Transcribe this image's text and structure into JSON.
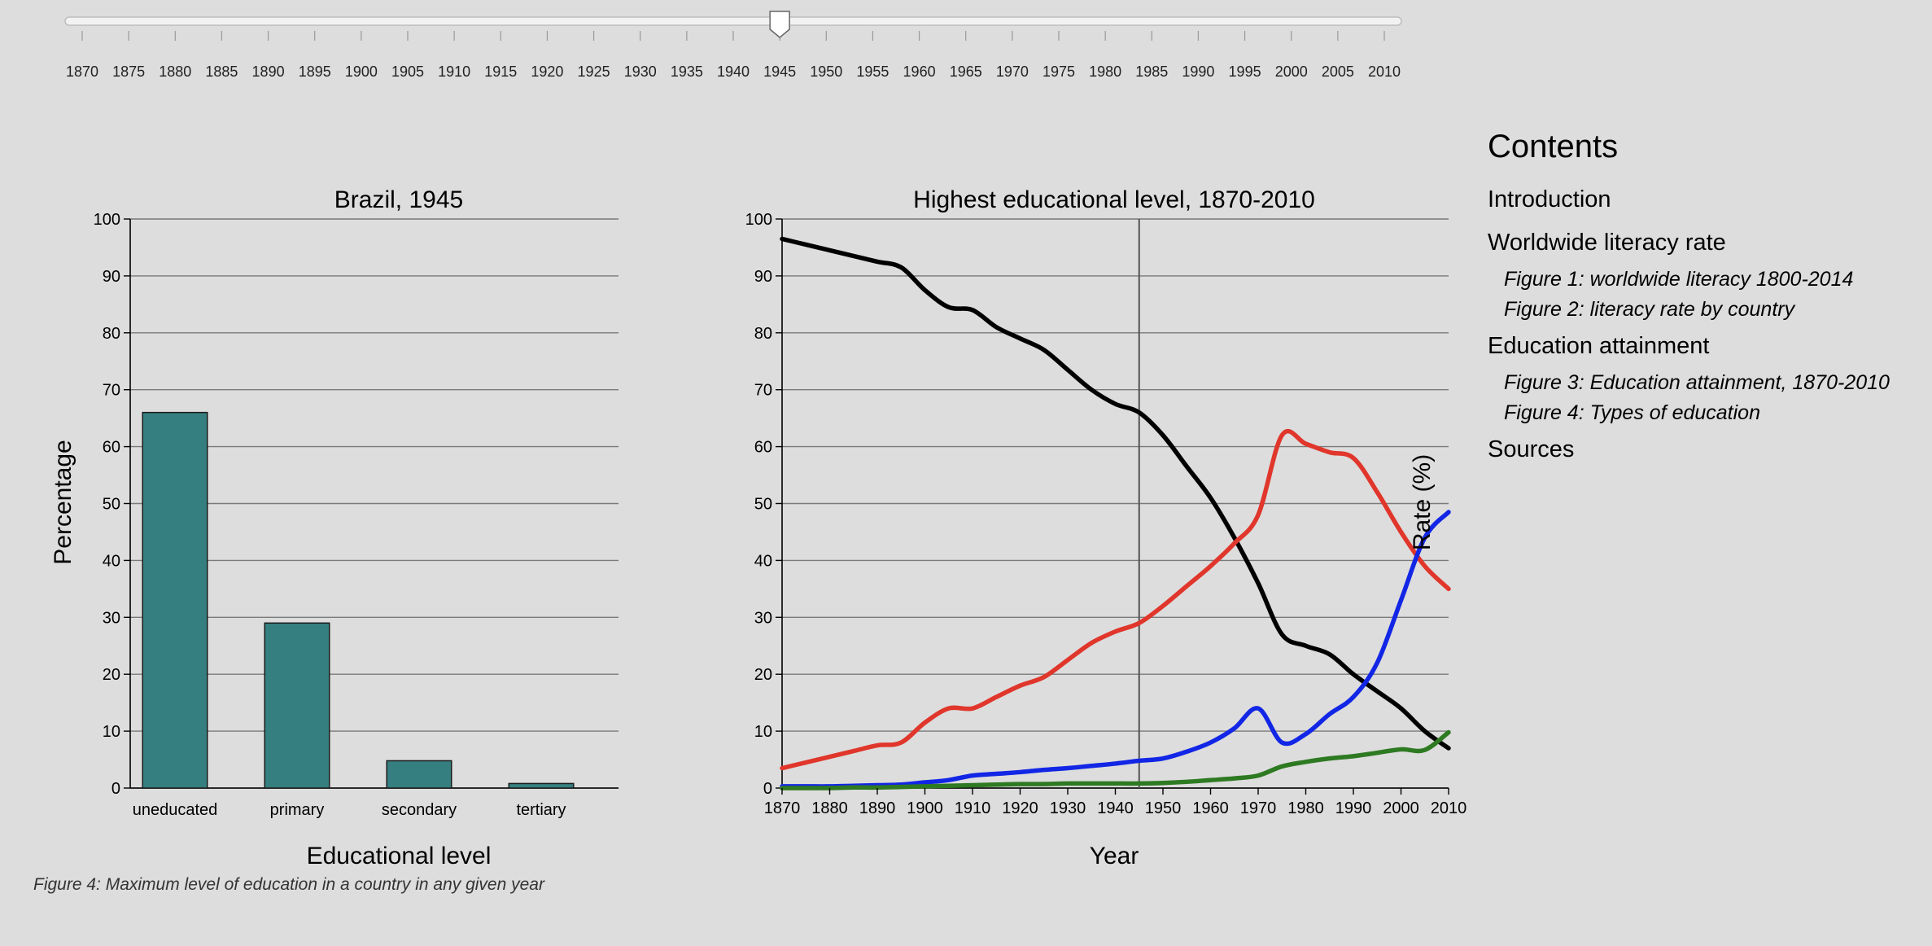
{
  "slider": {
    "min_year": 1870,
    "max_year": 2010,
    "step": 5,
    "selected_year": 1945,
    "tick_labels": [
      "1870",
      "1875",
      "1880",
      "1885",
      "1890",
      "1895",
      "1900",
      "1905",
      "1910",
      "1915",
      "1920",
      "1925",
      "1930",
      "1935",
      "1940",
      "1945",
      "1950",
      "1955",
      "1960",
      "1965",
      "1970",
      "1975",
      "1980",
      "1985",
      "1990",
      "1995",
      "2000",
      "2005",
      "2010"
    ]
  },
  "caption": "Figure 4: Maximum level of education in a country in any given year",
  "toc": {
    "title": "Contents",
    "items": [
      {
        "label": "Introduction",
        "sub": []
      },
      {
        "label": "Worldwide literacy rate",
        "sub": [
          "Figure 1: worldwide literacy 1800-2014",
          "Figure 2: literacy rate by country"
        ]
      },
      {
        "label": "Education attainment",
        "sub": [
          "Figure 3: Education attainment, 1870-2010",
          "Figure 4: Types of education"
        ]
      },
      {
        "label": "Sources",
        "sub": []
      }
    ]
  },
  "colors": {
    "bar_fill": "#367f80",
    "uneducated": "#000000",
    "primary": "#e0362b",
    "secondary": "#1226e6",
    "tertiary": "#2e7a22",
    "grid": "#7a7a7a"
  },
  "chart_data": [
    {
      "type": "bar",
      "title": "Brazil, 1945",
      "xlabel": "Educational level",
      "ylabel": "Percentage",
      "categories": [
        "uneducated",
        "primary",
        "secondary",
        "tertiary"
      ],
      "values": [
        66,
        29,
        4.8,
        0.8
      ],
      "ylim": [
        0,
        100
      ],
      "yticks": [
        0,
        10,
        20,
        30,
        40,
        50,
        60,
        70,
        80,
        90,
        100
      ],
      "grid": true
    },
    {
      "type": "line",
      "title": "Highest educational level, 1870-2010",
      "xlabel": "Year",
      "ylabel": "Rate (%)",
      "xlim": [
        1870,
        2010
      ],
      "ylim": [
        0,
        100
      ],
      "xticks": [
        1870,
        1880,
        1890,
        1900,
        1910,
        1920,
        1930,
        1940,
        1950,
        1960,
        1970,
        1980,
        1990,
        2000,
        2010
      ],
      "yticks": [
        0,
        10,
        20,
        30,
        40,
        50,
        60,
        70,
        80,
        90,
        100
      ],
      "grid": true,
      "marker_year": 1945,
      "x": [
        1870,
        1875,
        1880,
        1885,
        1890,
        1895,
        1900,
        1905,
        1910,
        1915,
        1920,
        1925,
        1930,
        1935,
        1940,
        1945,
        1950,
        1955,
        1960,
        1965,
        1970,
        1975,
        1980,
        1985,
        1990,
        1995,
        2000,
        2005,
        2010
      ],
      "series": [
        {
          "key": "uneducated",
          "values": [
            96.5,
            95.5,
            94.5,
            93.5,
            92.5,
            91.5,
            87.5,
            84.5,
            84,
            81,
            79,
            77,
            73.5,
            70,
            67.5,
            66,
            62,
            56.5,
            51,
            44,
            36,
            27,
            25,
            23.5,
            20,
            17,
            14,
            10,
            7
          ]
        },
        {
          "key": "primary",
          "values": [
            3.5,
            4.5,
            5.5,
            6.5,
            7.5,
            8,
            11.5,
            14,
            14,
            16,
            18,
            19.5,
            22.5,
            25.5,
            27.5,
            29,
            32,
            35.5,
            39,
            43,
            48,
            62,
            60.5,
            59,
            58,
            52,
            45,
            39,
            35
          ]
        },
        {
          "key": "secondary",
          "values": [
            0.3,
            0.3,
            0.3,
            0.4,
            0.5,
            0.6,
            1,
            1.4,
            2.2,
            2.5,
            2.8,
            3.2,
            3.5,
            3.9,
            4.3,
            4.8,
            5.2,
            6.4,
            8,
            10.5,
            14,
            8,
            9.5,
            13,
            16,
            22,
            33,
            44,
            48.5
          ]
        },
        {
          "key": "tertiary",
          "values": [
            0,
            0,
            0,
            0.1,
            0.1,
            0.2,
            0.3,
            0.4,
            0.5,
            0.6,
            0.7,
            0.7,
            0.8,
            0.8,
            0.8,
            0.8,
            0.9,
            1.1,
            1.4,
            1.7,
            2.2,
            3.8,
            4.6,
            5.2,
            5.6,
            6.2,
            6.8,
            6.7,
            9.8
          ]
        }
      ]
    }
  ]
}
